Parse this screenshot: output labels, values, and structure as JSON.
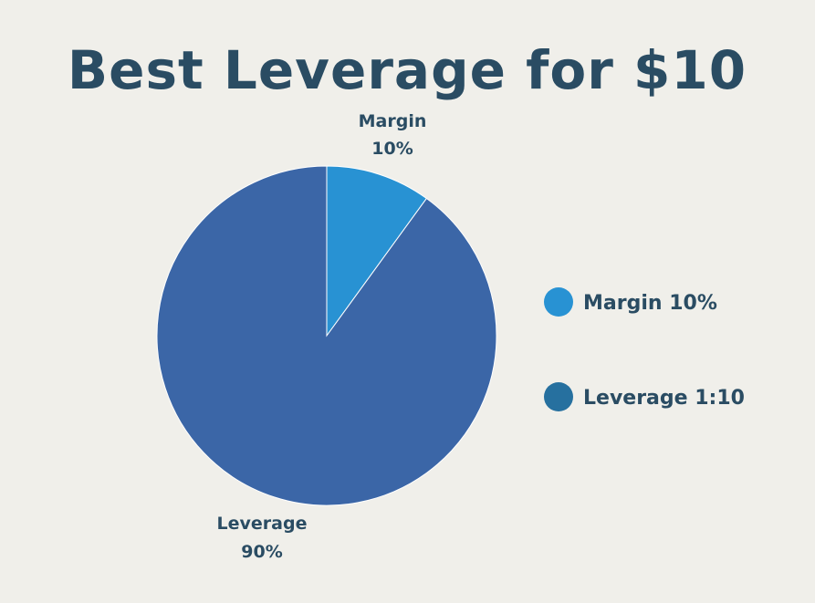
{
  "chart_data": {
    "type": "pie",
    "title": "Best Leverage for $10",
    "slices": [
      {
        "name": "Margin",
        "value": 10,
        "label_value": "10%",
        "color": "#2892d3"
      },
      {
        "name": "Leverage",
        "value": 90,
        "label_value": "90%",
        "color": "#3b66a7"
      }
    ],
    "legend": {
      "placement": "right",
      "items": [
        {
          "text": "Margin 10%",
          "color": "#2892d3"
        },
        {
          "text": "Leverage 1:10",
          "color": "#26709f"
        }
      ]
    }
  },
  "colors": {
    "background": "#f0efea",
    "text": "#2a4c63",
    "slice_border": "#ffffff"
  }
}
